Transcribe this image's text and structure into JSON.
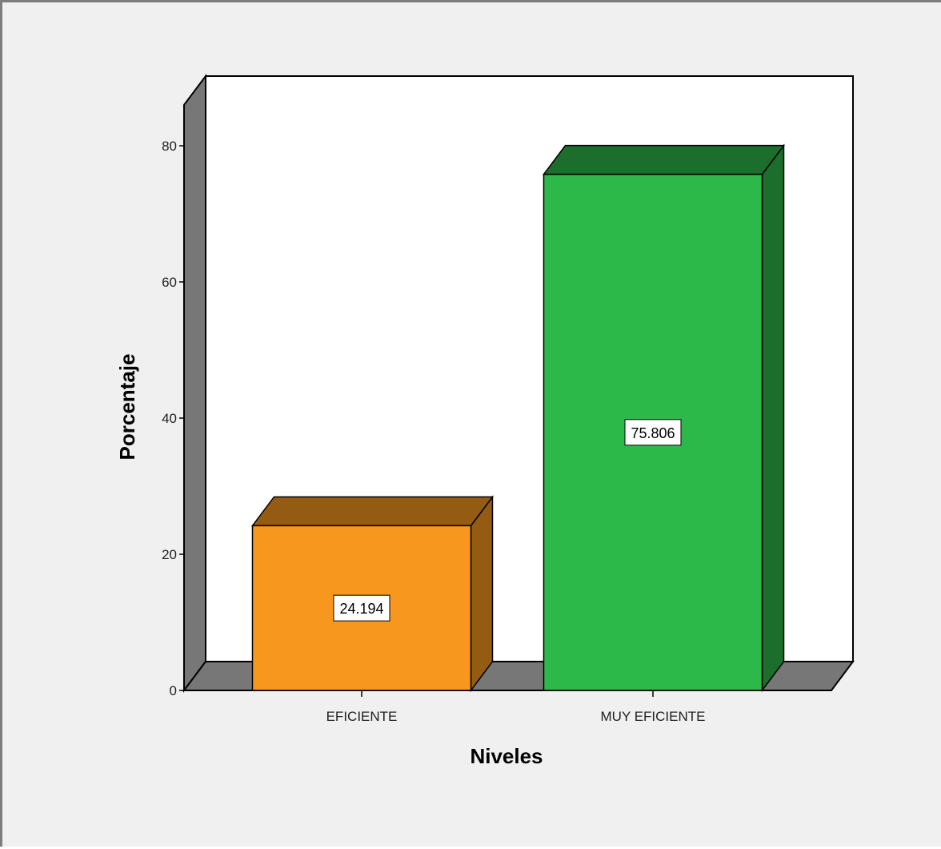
{
  "chart_data": {
    "type": "bar",
    "categories": [
      "EFICIENTE",
      "MUY EFICIENTE"
    ],
    "values": [
      24.194,
      75.806
    ],
    "data_labels": [
      "24.194",
      "75.806"
    ],
    "xlabel": "Niveles",
    "ylabel": "Porcentaje",
    "ylim": [
      0,
      86
    ],
    "yticks": [
      0,
      20,
      40,
      60,
      80
    ],
    "three_d": true,
    "grid": false,
    "legend": "none",
    "colors": {
      "EFICIENTE": "#f7971e",
      "MUY EFICIENTE": "#2db84a",
      "walls": "#777777",
      "background": "#f0f0f0",
      "plot_area": "#ffffff"
    }
  }
}
